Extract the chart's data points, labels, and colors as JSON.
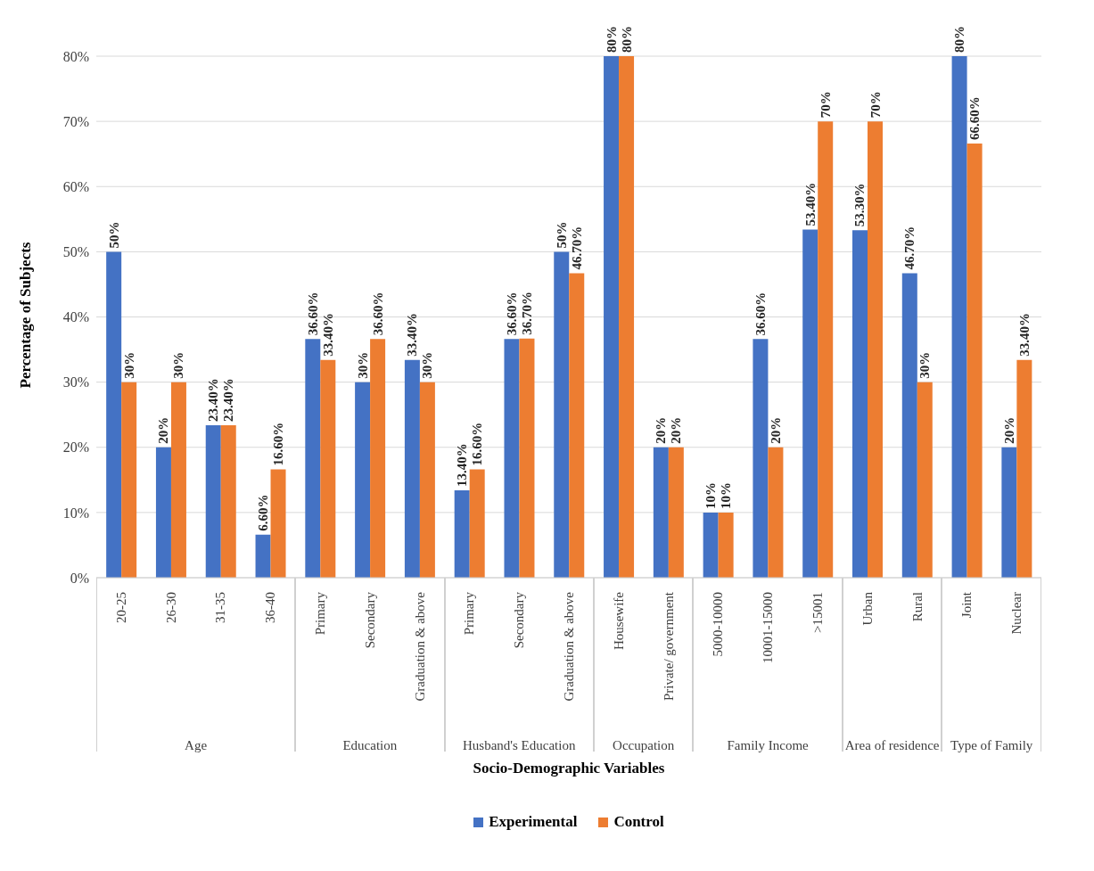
{
  "chart_data": {
    "type": "bar",
    "xlabel": "Socio-Demographic Variables",
    "ylabel": "Percentage of Subjects",
    "categories": [
      "20-25",
      "26-30",
      "31-35",
      "36-40",
      "Primary",
      "Secondary",
      "Graduation & above",
      "Primary",
      "Secondary",
      "Graduation & above",
      "Housewife",
      "Private/ government",
      "5000-10000",
      "10001-15000",
      ">15001",
      "Urban",
      "Rural",
      "Joint",
      "Nuclear"
    ],
    "annotations": [
      "Age",
      "Education",
      "Husband's Education",
      "Occupation",
      "Family Income",
      "Area of residence",
      "Type of Family"
    ],
    "series": [
      {
        "name": "Experimental",
        "color": "#4472c4",
        "values": [
          50,
          20,
          23.4,
          6.6,
          36.6,
          30,
          33.4,
          13.4,
          36.6,
          50,
          80,
          20,
          10,
          36.6,
          53.4,
          53.3,
          46.7,
          80,
          20
        ],
        "value_labels": [
          "50%",
          "20%",
          "23.40%",
          "6.60%",
          "36.60%",
          "30%",
          "33.40%",
          "13.40%",
          "36.60%",
          "50%",
          "80%",
          "20%",
          "10%",
          "36.60%",
          "53.40%",
          "53.30%",
          "46.70%",
          "80%",
          "20%"
        ]
      },
      {
        "name": "Control",
        "color": "#ed7d31",
        "values": [
          30,
          30,
          23.4,
          16.6,
          33.4,
          36.6,
          30,
          16.6,
          36.7,
          46.7,
          80,
          20,
          10,
          20,
          70,
          70,
          30,
          66.6,
          33.4
        ],
        "value_labels": [
          "30%",
          "30%",
          "23.40%",
          "16.60%",
          "33.40%",
          "36.60%",
          "30%",
          "16.60%",
          "36.70%",
          "46.70%",
          "80%",
          "20%",
          "10%",
          "20%",
          "70%",
          "70%",
          "30%",
          "66.60%",
          "33.40%"
        ]
      }
    ],
    "ylim": [
      0,
      80
    ],
    "yticks": [
      {
        "value": 0,
        "label": "0%"
      },
      {
        "value": 10,
        "label": "10%"
      },
      {
        "value": 20,
        "label": "20%"
      },
      {
        "value": 30,
        "label": "30%"
      },
      {
        "value": 40,
        "label": "40%"
      },
      {
        "value": 50,
        "label": "50%"
      },
      {
        "value": 60,
        "label": "60%"
      },
      {
        "value": 70,
        "label": "70%"
      },
      {
        "value": 80,
        "label": "80%"
      }
    ],
    "grid": "y",
    "legend": "bottom"
  }
}
